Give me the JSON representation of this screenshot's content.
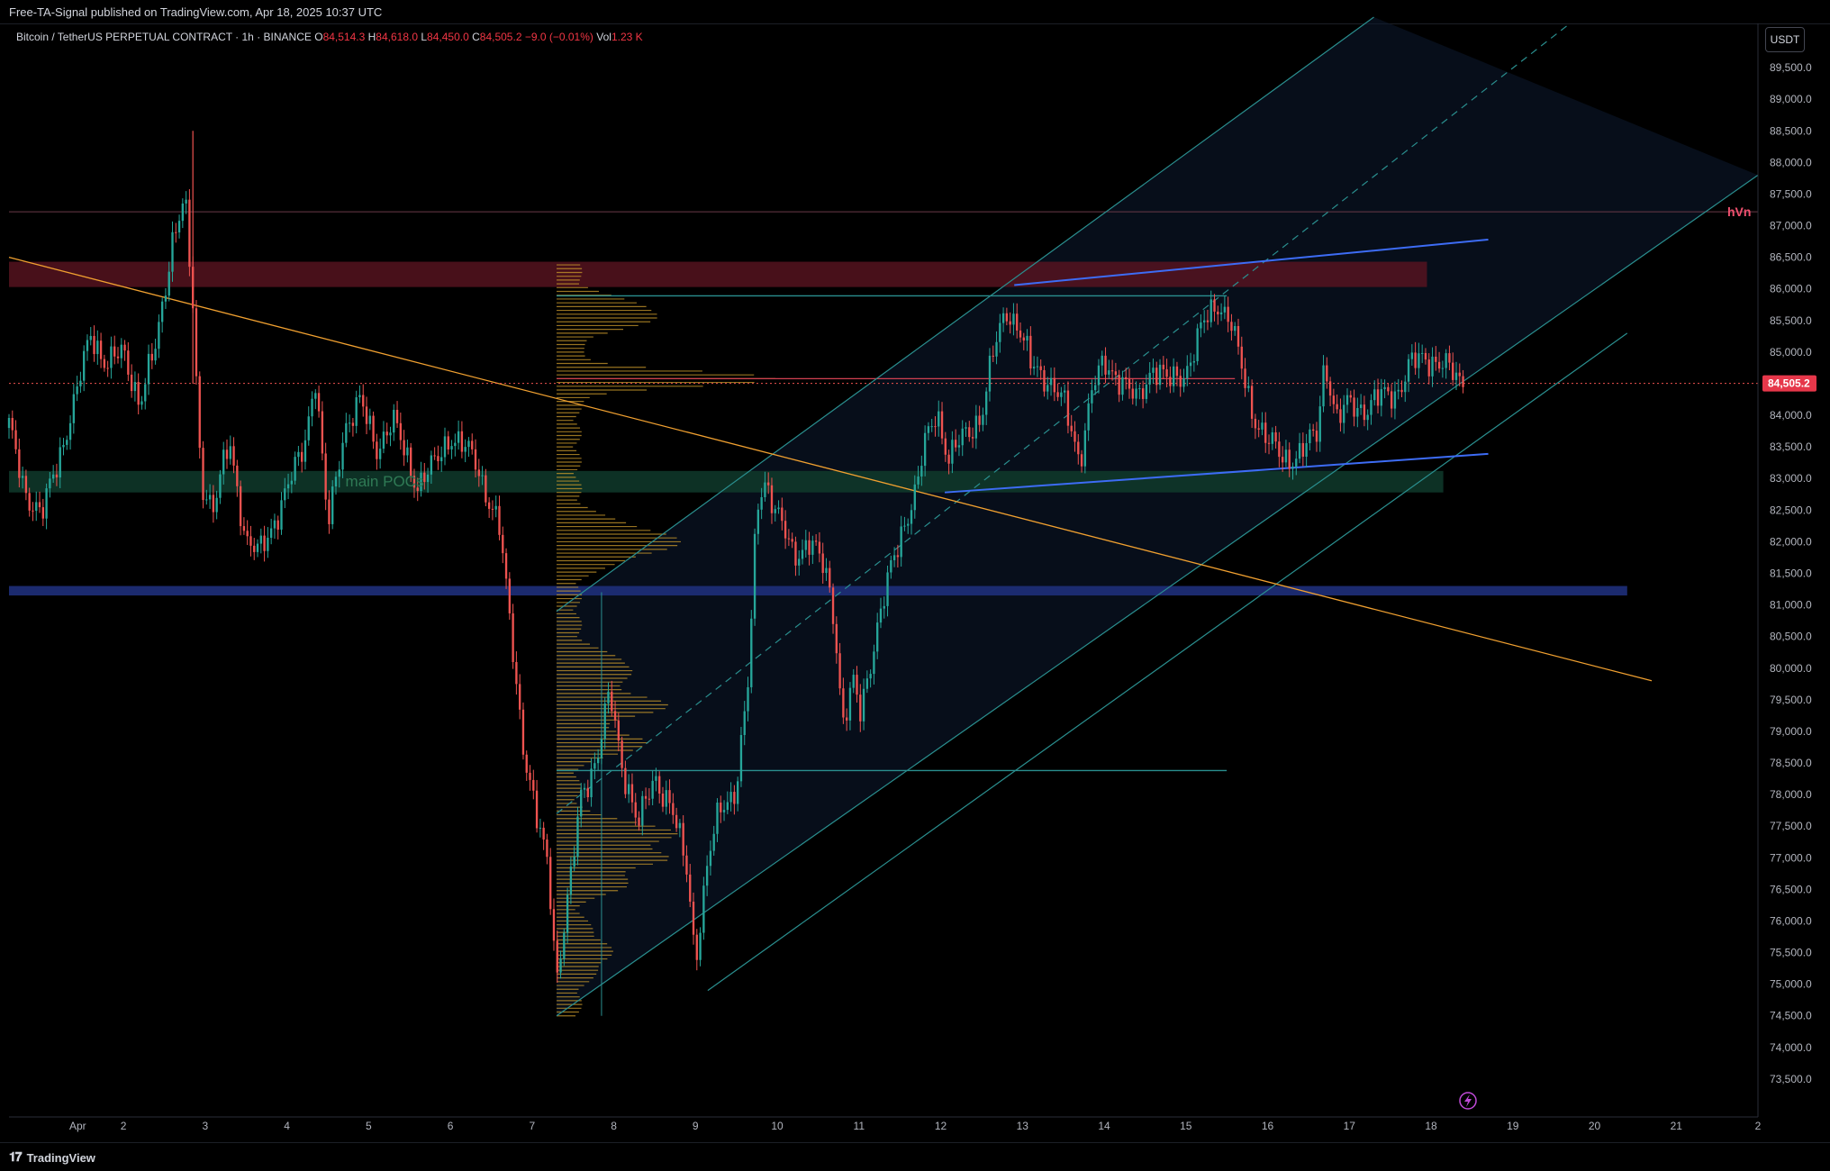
{
  "header": {
    "published": "Free-TA-Signal published on TradingView.com, Apr 18, 2025 10:37 UTC"
  },
  "legend": {
    "symbol": "Bitcoin / TetherUS PERPETUAL CONTRACT · 1h · BINANCE",
    "open_label": "O",
    "open": "84,514.3",
    "high_label": "H",
    "high": "84,618.0",
    "low_label": "L",
    "low": "84,450.0",
    "close_label": "C",
    "close": "84,505.2",
    "change": "−9.0 (−0.01%)",
    "vol_label": "Vol",
    "vol": "1.23 K"
  },
  "currency_button": "USDT",
  "footer": {
    "brand": "TradingView"
  },
  "colors": {
    "up": "#26a69a",
    "down": "#ef5350",
    "trendline": "#f0a030",
    "channel": "#2a8f8f",
    "wedge": "#3d6cf5",
    "hvn": "#f0506e",
    "supply_zone": "#5a1420",
    "poc_zone": "#0f3a2c",
    "blue_band": "#1e2f7a",
    "profile": "#c99a2c"
  },
  "annotations": {
    "hvn_label": "hVn",
    "poc_label": "main POCs",
    "last_price_tag": "84,505.2"
  },
  "chart_data": {
    "type": "candlestick",
    "symbol": "BTCUSDT.P",
    "interval": "1h",
    "y_axis": {
      "min": 72900,
      "max": 90200,
      "ticks": [
        "89,500.0",
        "89,000.0",
        "88,500.0",
        "88,000.0",
        "87,500.0",
        "87,000.0",
        "86,500.0",
        "86,000.0",
        "85,500.0",
        "85,000.0",
        "84,000.0",
        "83,500.0",
        "83,000.0",
        "82,500.0",
        "82,000.0",
        "81,500.0",
        "81,000.0",
        "80,500.0",
        "80,000.0",
        "79,500.0",
        "79,000.0",
        "78,500.0",
        "78,000.0",
        "77,500.0",
        "77,000.0",
        "76,500.0",
        "76,000.0",
        "75,500.0",
        "75,000.0",
        "74,500.0",
        "74,000.0",
        "73,500.0"
      ]
    },
    "x_axis": {
      "labels": [
        "Apr",
        "2",
        "3",
        "4",
        "5",
        "6",
        "7",
        "8",
        "9",
        "10",
        "11",
        "12",
        "13",
        "14",
        "15",
        "16",
        "17",
        "18",
        "19",
        "20",
        "21",
        "2"
      ],
      "days": [
        1,
        2,
        3,
        4,
        5,
        6,
        7,
        8,
        9,
        10,
        11,
        12,
        13,
        14,
        15,
        16,
        17,
        18,
        19,
        20,
        21,
        22
      ],
      "min_day": 0.6,
      "max_day": 22.0
    },
    "price_path": [
      [
        0.6,
        83800
      ],
      [
        0.8,
        82800
      ],
      [
        1.0,
        82400
      ],
      [
        1.2,
        83300
      ],
      [
        1.4,
        84200
      ],
      [
        1.6,
        85300
      ],
      [
        1.8,
        84800
      ],
      [
        2.0,
        85000
      ],
      [
        2.2,
        84200
      ],
      [
        2.4,
        85100
      ],
      [
        2.6,
        86800
      ],
      [
        2.75,
        87400
      ],
      [
        2.85,
        85700
      ],
      [
        2.95,
        83000
      ],
      [
        3.1,
        82500
      ],
      [
        3.3,
        83600
      ],
      [
        3.5,
        82000
      ],
      [
        3.65,
        81800
      ],
      [
        3.8,
        82200
      ],
      [
        4.0,
        82800
      ],
      [
        4.2,
        83500
      ],
      [
        4.35,
        84600
      ],
      [
        4.5,
        82200
      ],
      [
        4.7,
        83800
      ],
      [
        4.9,
        84200
      ],
      [
        5.1,
        83500
      ],
      [
        5.3,
        83900
      ],
      [
        5.6,
        82900
      ],
      [
        5.8,
        83200
      ],
      [
        6.0,
        83700
      ],
      [
        6.3,
        83300
      ],
      [
        6.6,
        82200
      ],
      [
        6.75,
        80500
      ],
      [
        6.9,
        78700
      ],
      [
        7.05,
        77600
      ],
      [
        7.2,
        76900
      ],
      [
        7.3,
        75100
      ],
      [
        7.45,
        76400
      ],
      [
        7.6,
        78000
      ],
      [
        7.8,
        78600
      ],
      [
        7.95,
        79600
      ],
      [
        8.1,
        78500
      ],
      [
        8.3,
        77500
      ],
      [
        8.5,
        78300
      ],
      [
        8.7,
        77800
      ],
      [
        8.9,
        76800
      ],
      [
        9.0,
        75400
      ],
      [
        9.15,
        76900
      ],
      [
        9.3,
        77800
      ],
      [
        9.5,
        78100
      ],
      [
        9.65,
        79800
      ],
      [
        9.75,
        82600
      ],
      [
        9.85,
        83000
      ],
      [
        10.0,
        82400
      ],
      [
        10.2,
        81800
      ],
      [
        10.4,
        82000
      ],
      [
        10.6,
        81500
      ],
      [
        10.7,
        80800
      ],
      [
        10.8,
        79100
      ],
      [
        10.95,
        79800
      ],
      [
        11.0,
        79200
      ],
      [
        11.2,
        80500
      ],
      [
        11.4,
        81600
      ],
      [
        11.55,
        82300
      ],
      [
        11.7,
        82800
      ],
      [
        11.8,
        83500
      ],
      [
        11.95,
        84100
      ],
      [
        12.1,
        83300
      ],
      [
        12.3,
        83700
      ],
      [
        12.5,
        84000
      ],
      [
        12.65,
        85000
      ],
      [
        12.8,
        85700
      ],
      [
        12.95,
        85400
      ],
      [
        13.1,
        84800
      ],
      [
        13.3,
        84600
      ],
      [
        13.5,
        84200
      ],
      [
        13.7,
        83300
      ],
      [
        13.85,
        84400
      ],
      [
        14.0,
        84800
      ],
      [
        14.2,
        84600
      ],
      [
        14.4,
        84200
      ],
      [
        14.6,
        84800
      ],
      [
        14.8,
        84500
      ],
      [
        15.0,
        84700
      ],
      [
        15.2,
        85400
      ],
      [
        15.4,
        85800
      ],
      [
        15.55,
        85500
      ],
      [
        15.65,
        84900
      ],
      [
        15.8,
        84100
      ],
      [
        16.0,
        83600
      ],
      [
        16.2,
        83300
      ],
      [
        16.4,
        83400
      ],
      [
        16.6,
        83700
      ],
      [
        16.7,
        84900
      ],
      [
        16.85,
        83900
      ],
      [
        17.0,
        84200
      ],
      [
        17.2,
        84100
      ],
      [
        17.4,
        84300
      ],
      [
        17.6,
        84400
      ],
      [
        17.75,
        84800
      ],
      [
        17.9,
        84900
      ],
      [
        18.0,
        84900
      ],
      [
        18.15,
        84800
      ],
      [
        18.3,
        84600
      ],
      [
        18.42,
        84505
      ]
    ],
    "last_price": 84505.2,
    "levels": {
      "hvn_line": 87220,
      "supply_zone": [
        86030,
        86430
      ],
      "poc_zone": [
        82780,
        83120
      ],
      "blue_band": [
        81150,
        81300
      ],
      "range_top": 85890,
      "range_bottom": 78380,
      "profile_poc": 84580
    },
    "trendlines": {
      "descending": [
        [
          0.6,
          86500
        ],
        [
          20.7,
          79800
        ]
      ],
      "channel_upper": [
        [
          7.3,
          80900
        ],
        [
          17.3,
          90300
        ]
      ],
      "channel_mid": [
        [
          7.3,
          77700
        ],
        [
          19.7,
          90200
        ]
      ],
      "channel_lower": [
        [
          7.3,
          74500
        ],
        [
          22.0,
          87800
        ]
      ],
      "channel_lower2": [
        [
          9.15,
          74900
        ],
        [
          20.4,
          85300
        ]
      ],
      "wedge_upper": [
        [
          12.9,
          86060
        ],
        [
          18.7,
          86780
        ]
      ],
      "wedge_lower": [
        [
          12.05,
          82780
        ],
        [
          18.7,
          83390
        ]
      ]
    }
  }
}
